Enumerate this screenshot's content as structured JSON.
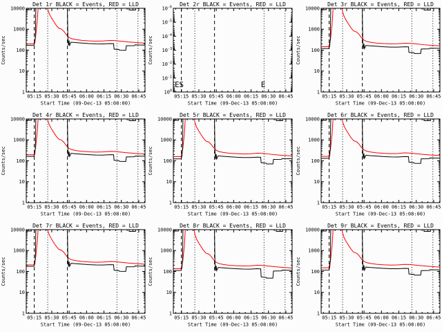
{
  "figure": {
    "background": "#fcfcfc",
    "frame_color": "#000000",
    "events_color": "#000000",
    "lld_color": "#ff0000"
  },
  "axes_common": {
    "x_max_minutes": 102.4,
    "x_tick_minutes": [
      7,
      22,
      37,
      52,
      67,
      82,
      97
    ],
    "x_tick_labels": [
      "05:15",
      "05:30",
      "05:45",
      "06:00",
      "06:15",
      "06:30",
      "06:45"
    ],
    "x_minor_step_minutes": 5,
    "xlabel": "Start Time (09-Dec-13 05:08:00)",
    "ylabel": "Counts/sec",
    "guides": {
      "dashed_minutes": [
        6.9,
        35.5
      ],
      "dotted_minutes": [
        18.5,
        78.2,
        96.3
      ]
    },
    "canonical_x": {
      "red": [
        0,
        6.5,
        8,
        9.5,
        10.8,
        17,
        18.5,
        20,
        22,
        24,
        26,
        28,
        30.5,
        32.5,
        34.5,
        36.5,
        39,
        43,
        48,
        54,
        60,
        66,
        72,
        76,
        82,
        88,
        94,
        102.4
      ],
      "black": [
        0,
        6.6,
        7.4,
        7.9,
        8.4,
        35.3,
        35.9,
        36.4,
        36.9,
        37.4,
        38.6,
        42,
        48,
        54,
        60,
        66,
        72,
        75.3,
        75.7,
        80,
        80.4,
        85.8,
        86.3,
        93.2,
        93.8,
        102.4
      ],
      "sat": [
        0,
        4.4,
        4.8,
        88.3,
        88.7,
        94.2,
        94.6,
        102.4
      ]
    }
  },
  "chart_data": [
    {
      "type": "line",
      "title": "Det 1r BLACK = Events, RED = LLD",
      "y_log_bottom": 0,
      "y_log_top": 4,
      "y_tick_labels": [
        "1",
        "10",
        "100",
        "1000",
        "10000"
      ],
      "series": [
        {
          "name": "LLD",
          "color": "#ff0000",
          "x_ref": "red",
          "y": [
            200,
            200,
            400,
            2500,
            30000,
            30000,
            9000,
            5200,
            3300,
            2200,
            1500,
            1120,
            1000,
            790,
            550,
            420,
            355,
            318,
            293,
            278,
            270,
            274,
            291,
            288,
            267,
            247,
            233,
            216
          ]
        },
        {
          "name": "Events",
          "color": "#000000",
          "x_ref": "black",
          "y": [
            171,
            172,
            230,
            500,
            30000,
            30000,
            380,
            165,
            290,
            170,
            240,
            230,
            218,
            207,
            200,
            198,
            207,
            205,
            112,
            107,
            99,
            98,
            162,
            164,
            178,
            174
          ]
        },
        {
          "name": "Events-saturated",
          "color": "#000000",
          "x_ref": "sat",
          "y": [
            8600,
            8600,
            30000,
            30000,
            8300,
            8300,
            30000,
            30000
          ]
        }
      ]
    },
    {
      "type": "line",
      "title": "Det 2r BLACK = Events, RED = LLD",
      "empty": true,
      "y_log_bottom": 0,
      "y_log_top": -6,
      "y_tick_exponents": [
        0,
        -1,
        -2,
        -3,
        -4,
        -5,
        -6
      ],
      "markers": [
        {
          "t": 1.2,
          "label": "E"
        },
        {
          "t": 5.0,
          "label": "S"
        },
        {
          "t": 75.5,
          "label": "E"
        }
      ],
      "series": []
    },
    {
      "type": "line",
      "title": "Det 3r BLACK = Events, RED = LLD",
      "y_log_bottom": 0,
      "y_log_top": 4,
      "y_tick_labels": [
        "1",
        "10",
        "100",
        "1000",
        "10000"
      ],
      "series": [
        {
          "name": "LLD",
          "color": "#ff0000",
          "x_ref": "red",
          "y": [
            148,
            148,
            296,
            1850,
            30000,
            30000,
            6660,
            3850,
            2440,
            1630,
            1110,
            830,
            740,
            585,
            407,
            311,
            263,
            235,
            217,
            206,
            200,
            203,
            215,
            213,
            198,
            183,
            172,
            160
          ]
        },
        {
          "name": "Events",
          "color": "#000000",
          "x_ref": "black",
          "y": [
            120,
            120,
            161,
            350,
            30000,
            30000,
            266,
            116,
            203,
            119,
            168,
            161,
            153,
            145,
            140,
            139,
            145,
            144,
            78,
            75,
            69,
            69,
            113,
            115,
            125,
            122
          ]
        },
        {
          "name": "Events-saturated",
          "color": "#000000",
          "x_ref": "sat",
          "y": [
            8600,
            8600,
            30000,
            30000,
            8300,
            8300,
            30000,
            30000
          ]
        }
      ]
    },
    {
      "type": "line",
      "title": "Det 4r BLACK = Events, RED = LLD",
      "y_log_bottom": 0,
      "y_log_top": 4,
      "y_tick_labels": [
        "1",
        "10",
        "100",
        "1000",
        "10000"
      ],
      "series": [
        {
          "name": "LLD",
          "color": "#ff0000",
          "x_ref": "red",
          "y": [
            194,
            194,
            388,
            2430,
            30000,
            30000,
            8730,
            5040,
            3200,
            2130,
            1460,
            1090,
            970,
            766,
            534,
            407,
            344,
            308,
            284,
            270,
            262,
            266,
            282,
            279,
            259,
            240,
            226,
            210
          ]
        },
        {
          "name": "Events",
          "color": "#000000",
          "x_ref": "black",
          "y": [
            162,
            163,
            219,
            475,
            30000,
            30000,
            361,
            157,
            276,
            162,
            228,
            219,
            207,
            197,
            190,
            188,
            197,
            195,
            106,
            102,
            94,
            93,
            154,
            156,
            169,
            165
          ]
        },
        {
          "name": "Events-saturated",
          "color": "#000000",
          "x_ref": "sat",
          "y": [
            8600,
            8600,
            30000,
            30000,
            8300,
            8300,
            30000,
            30000
          ]
        }
      ]
    },
    {
      "type": "line",
      "title": "Det 5r BLACK = Events, RED = LLD",
      "y_log_bottom": 0,
      "y_log_top": 4,
      "y_tick_labels": [
        "1",
        "10",
        "100",
        "1000",
        "10000"
      ],
      "series": [
        {
          "name": "LLD",
          "color": "#ff0000",
          "x_ref": "red",
          "y": [
            158,
            158,
            316,
            1980,
            30000,
            30000,
            7110,
            4110,
            2610,
            1740,
            1190,
            885,
            790,
            624,
            435,
            332,
            280,
            251,
            231,
            220,
            213,
            216,
            230,
            228,
            211,
            195,
            184,
            171
          ]
        },
        {
          "name": "Events",
          "color": "#000000",
          "x_ref": "black",
          "y": [
            123,
            124,
            166,
            360,
            30000,
            30000,
            274,
            119,
            209,
            122,
            173,
            166,
            157,
            149,
            144,
            143,
            149,
            148,
            81,
            77,
            71,
            71,
            117,
            118,
            128,
            125
          ]
        },
        {
          "name": "Events-saturated",
          "color": "#000000",
          "x_ref": "sat",
          "y": [
            8600,
            8600,
            30000,
            30000,
            8300,
            8300,
            30000,
            30000
          ]
        }
      ]
    },
    {
      "type": "line",
      "title": "Det 6r BLACK = Events, RED = LLD",
      "y_log_bottom": 0,
      "y_log_top": 4,
      "y_tick_labels": [
        "1",
        "10",
        "100",
        "1000",
        "10000"
      ],
      "series": [
        {
          "name": "LLD",
          "color": "#ff0000",
          "x_ref": "red",
          "y": [
            164,
            164,
            328,
            2050,
            30000,
            30000,
            7380,
            4260,
            2710,
            1800,
            1230,
            920,
            820,
            648,
            451,
            344,
            291,
            261,
            240,
            228,
            221,
            225,
            239,
            236,
            219,
            203,
            191,
            177
          ]
        },
        {
          "name": "Events",
          "color": "#000000",
          "x_ref": "black",
          "y": [
            132,
            132,
            177,
            385,
            30000,
            30000,
            293,
            127,
            223,
            131,
            185,
            177,
            168,
            159,
            154,
            152,
            159,
            158,
            86,
            82,
            76,
            75,
            125,
            126,
            137,
            134
          ]
        },
        {
          "name": "Events-saturated",
          "color": "#000000",
          "x_ref": "sat",
          "y": [
            8600,
            8600,
            30000,
            30000,
            8300,
            8300,
            30000,
            30000
          ]
        }
      ]
    },
    {
      "type": "line",
      "title": "Det 7r BLACK = Events, RED = LLD",
      "y_log_bottom": 0,
      "y_log_top": 4,
      "y_tick_labels": [
        "1",
        "10",
        "100",
        "1000",
        "10000"
      ],
      "series": [
        {
          "name": "LLD",
          "color": "#ff0000",
          "x_ref": "red",
          "y": [
            206,
            206,
            412,
            2580,
            30000,
            30000,
            9270,
            5360,
            3400,
            2270,
            1550,
            1150,
            1030,
            814,
            567,
            433,
            366,
            328,
            302,
            286,
            278,
            282,
            300,
            297,
            275,
            254,
            240,
            222
          ]
        },
        {
          "name": "Events",
          "color": "#000000",
          "x_ref": "black",
          "y": [
            176,
            177,
            237,
            515,
            30000,
            30000,
            391,
            170,
            299,
            175,
            247,
            237,
            225,
            213,
            206,
            204,
            213,
            211,
            115,
            110,
            102,
            101,
            167,
            169,
            183,
            179
          ]
        },
        {
          "name": "Events-saturated",
          "color": "#000000",
          "x_ref": "sat",
          "y": [
            8600,
            8600,
            30000,
            30000,
            8300,
            8300,
            30000,
            30000
          ]
        }
      ]
    },
    {
      "type": "line",
      "title": "Det 8r BLACK = Events, RED = LLD",
      "y_log_bottom": 0,
      "y_log_top": 4,
      "y_tick_labels": [
        "1",
        "10",
        "100",
        "1000",
        "10000"
      ],
      "series": [
        {
          "name": "LLD",
          "color": "#ff0000",
          "x_ref": "red",
          "y": [
            136,
            136,
            272,
            1700,
            30000,
            30000,
            6120,
            3540,
            2240,
            1500,
            1020,
            762,
            680,
            537,
            374,
            286,
            241,
            216,
            199,
            189,
            184,
            186,
            198,
            196,
            182,
            168,
            158,
            147
          ]
        },
        {
          "name": "Events",
          "color": "#000000",
          "x_ref": "black",
          "y": [
            111,
            112,
            150,
            325,
            30000,
            30000,
            247,
            107,
            189,
            111,
            156,
            150,
            142,
            135,
            130,
            129,
            135,
            133,
            55,
            52,
            48,
            48,
            105,
            107,
            116,
            113
          ]
        },
        {
          "name": "Events-saturated",
          "color": "#000000",
          "x_ref": "sat",
          "y": [
            8600,
            8600,
            30000,
            30000,
            8300,
            8300,
            30000,
            30000
          ]
        }
      ]
    },
    {
      "type": "line",
      "title": "Det 9r BLACK = Events, RED = LLD",
      "y_log_bottom": 0,
      "y_log_top": 4,
      "y_tick_labels": [
        "1",
        "10",
        "100",
        "1000",
        "10000"
      ],
      "series": [
        {
          "name": "LLD",
          "color": "#ff0000",
          "x_ref": "red",
          "y": [
            150,
            150,
            300,
            1875,
            30000,
            30000,
            6750,
            3900,
            2475,
            1650,
            1125,
            840,
            750,
            593,
            413,
            315,
            266,
            239,
            220,
            209,
            203,
            206,
            218,
            216,
            200,
            185,
            175,
            162
          ]
        },
        {
          "name": "Events",
          "color": "#000000",
          "x_ref": "black",
          "y": [
            116,
            117,
            156,
            340,
            30000,
            30000,
            258,
            112,
            197,
            116,
            163,
            156,
            148,
            141,
            136,
            135,
            141,
            139,
            76,
            73,
            67,
            67,
            110,
            112,
            121,
            118
          ]
        },
        {
          "name": "Events-saturated",
          "color": "#000000",
          "x_ref": "sat",
          "y": [
            8600,
            8600,
            30000,
            30000,
            8300,
            8300,
            30000,
            30000
          ]
        }
      ]
    }
  ]
}
